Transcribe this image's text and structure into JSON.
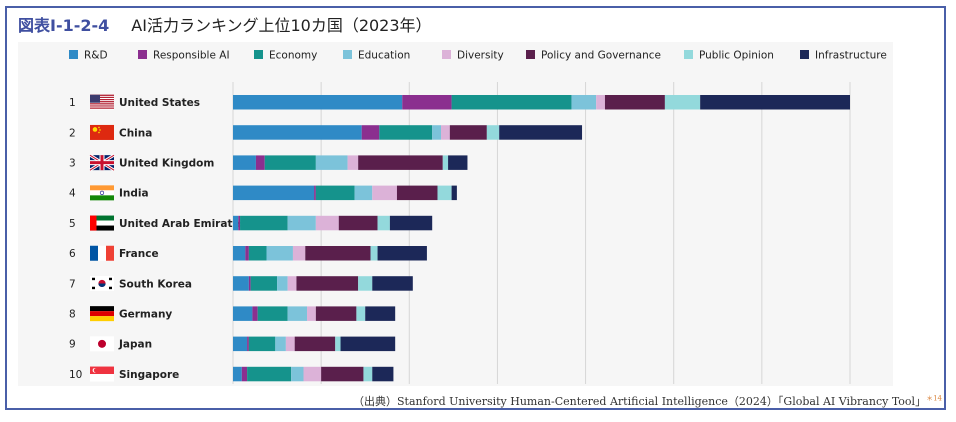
{
  "figure": {
    "label": "図表Ⅰ-1-2-4",
    "title": "AI活力ランキング上位10カ国（2023年）",
    "source": "（出典）Stanford University Human-Centered Artificial Intelligence（2024）「Global AI Vibrancy Tool」",
    "footnote_mark": "＊14"
  },
  "chart_data": {
    "type": "bar",
    "orientation": "horizontal",
    "stacked": true,
    "title": "AI活力ランキング上位10カ国（2023年）",
    "legend_position": "top",
    "grid": true,
    "xlim": [
      0,
      35
    ],
    "x_gridlines": [
      0,
      5,
      10,
      15,
      20,
      25,
      30,
      35
    ],
    "series_colors": {
      "R&D": "#2f8ac6",
      "Responsible AI": "#8b2f8f",
      "Economy": "#15938c",
      "Education": "#7cc3da",
      "Diversity": "#dcb2d8",
      "Policy and Governance": "#5a1f4c",
      "Public Opinion": "#93d9dc",
      "Infrastructure": "#1c2858"
    },
    "legend": [
      "R&D",
      "Responsible AI",
      "Economy",
      "Education",
      "Diversity",
      "Policy and Governance",
      "Public Opinion",
      "Infrastructure"
    ],
    "rows": [
      {
        "rank": "1",
        "country": "United States",
        "flag": "us",
        "segments": [
          9.6,
          2.8,
          6.8,
          1.4,
          0.5,
          3.4,
          2.0,
          8.5
        ]
      },
      {
        "rank": "2",
        "country": "China",
        "flag": "cn",
        "segments": [
          7.3,
          1.0,
          3.0,
          0.5,
          0.5,
          2.1,
          0.7,
          4.7
        ]
      },
      {
        "rank": "3",
        "country": "United Kingdom",
        "flag": "uk",
        "segments": [
          1.3,
          0.5,
          2.9,
          1.8,
          0.6,
          4.8,
          0.3,
          1.1
        ]
      },
      {
        "rank": "4",
        "country": "India",
        "flag": "in",
        "segments": [
          4.6,
          0.1,
          2.2,
          1.0,
          1.4,
          2.3,
          0.8,
          0.3
        ]
      },
      {
        "rank": "5",
        "country": "United Arab Emirates",
        "flag": "ae",
        "segments": [
          0.3,
          0.1,
          2.7,
          1.6,
          1.3,
          2.2,
          0.7,
          2.4
        ]
      },
      {
        "rank": "6",
        "country": "France",
        "flag": "fr",
        "segments": [
          0.7,
          0.2,
          1.0,
          1.5,
          0.7,
          3.7,
          0.4,
          2.8
        ]
      },
      {
        "rank": "7",
        "country": "South Korea",
        "flag": "kr",
        "segments": [
          0.9,
          0.1,
          1.5,
          0.6,
          0.5,
          3.5,
          0.8,
          2.3
        ]
      },
      {
        "rank": "8",
        "country": "Germany",
        "flag": "de",
        "segments": [
          1.1,
          0.3,
          1.7,
          1.1,
          0.5,
          2.3,
          0.5,
          1.7
        ]
      },
      {
        "rank": "9",
        "country": "Japan",
        "flag": "jp",
        "segments": [
          0.8,
          0.1,
          1.5,
          0.6,
          0.5,
          2.3,
          0.3,
          3.1
        ]
      },
      {
        "rank": "10",
        "country": "Singapore",
        "flag": "sg",
        "segments": [
          0.5,
          0.3,
          2.5,
          0.7,
          1.0,
          2.4,
          0.5,
          1.2
        ]
      }
    ]
  }
}
